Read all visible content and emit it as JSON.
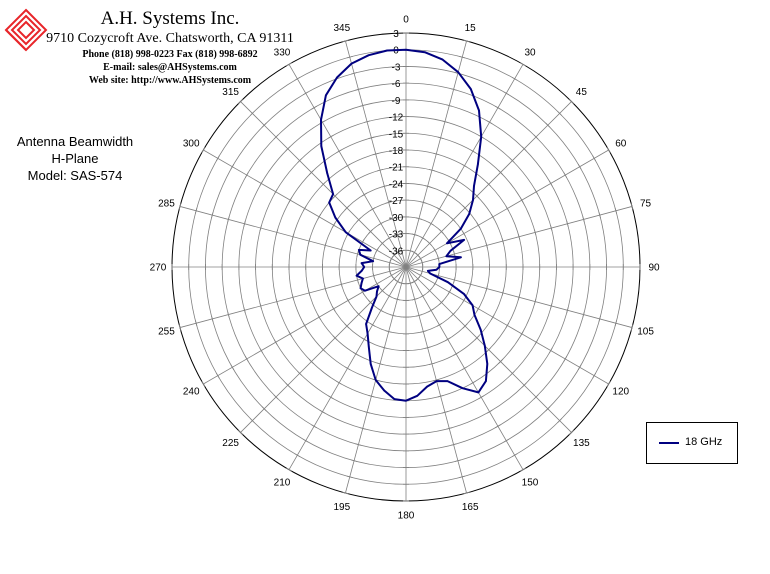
{
  "header": {
    "company": "A.H. Systems Inc.",
    "address": "9710 Cozycroft Ave. Chatsworth, CA 91311",
    "phone": "Phone (818) 998-0223 Fax (818) 998-6892",
    "email": "E-mail: sales@AHSystems.com",
    "website": "Web site: http://www.AHSystems.com"
  },
  "chart_title": {
    "line1": "Antenna Beamwidth",
    "line2": "H-Plane",
    "line3": "Model: SAS-574"
  },
  "colors": {
    "series": "#000080",
    "logo": "#e8252a",
    "grid": "#808080"
  },
  "chart_data": {
    "type": "polar-line",
    "angle_ticks": [
      0,
      15,
      30,
      45,
      60,
      75,
      90,
      105,
      120,
      135,
      150,
      165,
      180,
      195,
      210,
      225,
      240,
      255,
      270,
      285,
      300,
      315,
      330,
      345
    ],
    "radial_ticks": [
      3,
      0,
      -3,
      -6,
      -9,
      -12,
      -15,
      -18,
      -21,
      -24,
      -27,
      -30,
      -33,
      -36
    ],
    "rlim": [
      -39,
      3
    ],
    "grid": true,
    "legend_position": "bottom-right",
    "series": [
      {
        "name": "18 GHz",
        "theta": [
          0,
          5,
          10,
          15,
          20,
          25,
          30,
          35,
          40,
          45,
          50,
          55,
          60,
          65,
          70,
          75,
          80,
          85,
          90,
          95,
          100,
          105,
          110,
          115,
          120,
          125,
          130,
          135,
          140,
          145,
          150,
          155,
          160,
          165,
          170,
          175,
          180,
          185,
          190,
          195,
          200,
          205,
          210,
          215,
          220,
          225,
          230,
          235,
          240,
          245,
          250,
          255,
          260,
          265,
          270,
          275,
          280,
          285,
          290,
          295,
          300,
          305,
          310,
          315,
          320,
          325,
          330,
          335,
          340,
          345,
          350,
          355
        ],
        "r": [
          0,
          -0.3,
          -1.2,
          -2.8,
          -5,
          -8,
          -12,
          -16.5,
          -20,
          -22,
          -24.2,
          -27,
          -30.5,
          -27.5,
          -30.5,
          -31.5,
          -29,
          -33,
          -33,
          -33.5,
          -35,
          -34.5,
          -31,
          -27.5,
          -25.2,
          -24,
          -21.5,
          -19,
          -16.3,
          -14,
          -13,
          -15,
          -17.2,
          -17.8,
          -17.2,
          -15.8,
          -15,
          -15.2,
          -16.5,
          -18,
          -20.5,
          -23.2,
          -25.2,
          -26.5,
          -29.5,
          -31.5,
          -32.2,
          -33,
          -30.5,
          -30,
          -30.5,
          -31,
          -30,
          -31,
          -31.5,
          -31,
          -33,
          -30.5,
          -30,
          -32,
          -26.5,
          -23.5,
          -21,
          -20.5,
          -17,
          -12.5,
          -8.5,
          -5,
          -2.8,
          -1.2,
          -0.4,
          0
        ]
      }
    ]
  }
}
